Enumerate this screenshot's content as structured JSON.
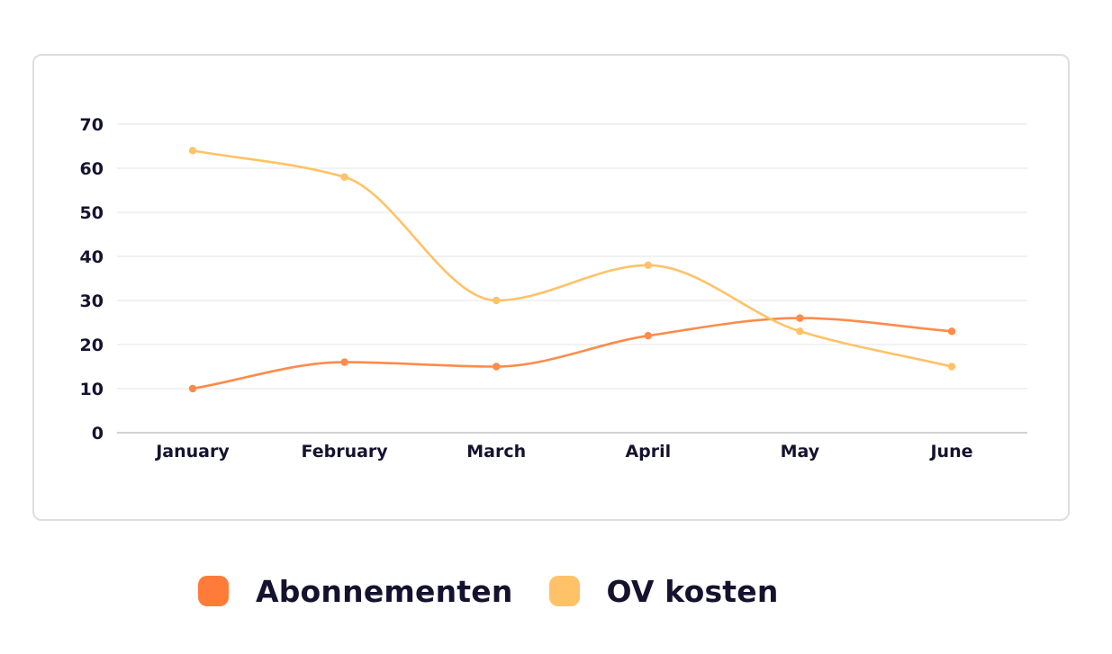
{
  "chart_data": {
    "type": "line",
    "smooth": true,
    "categories": [
      "January",
      "February",
      "March",
      "April",
      "May",
      "June"
    ],
    "series": [
      {
        "name": "Abonnementen",
        "color": "#fe8b49",
        "values": [
          10,
          16,
          15,
          22,
          26,
          23
        ]
      },
      {
        "name": "OV kosten",
        "color": "#ffc268",
        "values": [
          64,
          58,
          30,
          38,
          23,
          15
        ]
      }
    ],
    "yticks": [
      0,
      10,
      20,
      30,
      40,
      50,
      60,
      70
    ],
    "ylim": [
      0,
      70
    ],
    "grid": true,
    "legend_position": "bottom",
    "title": "",
    "xlabel": "",
    "ylabel": ""
  },
  "legend": {
    "items": [
      {
        "label": "Abonnementen",
        "color": "#ff7b39"
      },
      {
        "label": "OV kosten",
        "color": "#ffc268"
      }
    ]
  }
}
